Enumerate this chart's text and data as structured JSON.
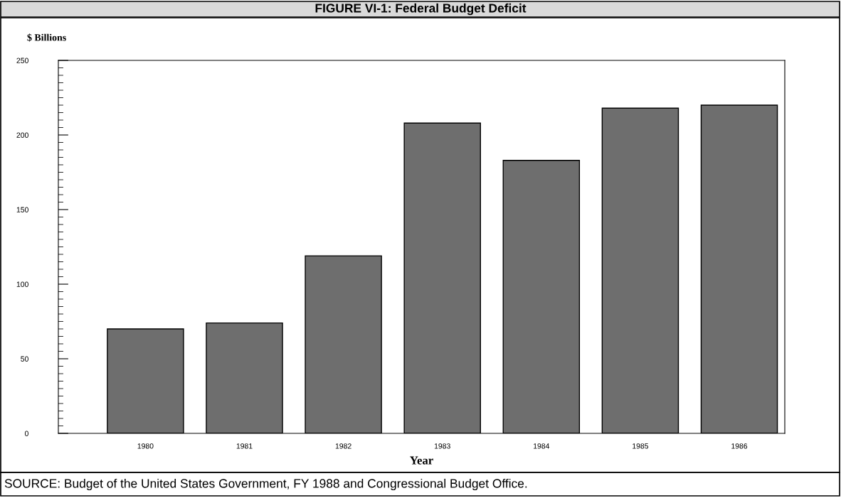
{
  "chart_data": {
    "type": "bar",
    "title": "FIGURE VI-1: Federal Budget Deficit",
    "categories": [
      "1980",
      "1981",
      "1982",
      "1983",
      "1984",
      "1985",
      "1986"
    ],
    "values": [
      70,
      74,
      119,
      208,
      183,
      218,
      220
    ],
    "color": "#6e6e6e",
    "ylabel": "$ Billions",
    "xlabel": "Year",
    "ylim": [
      0,
      250
    ],
    "yticks": [
      0,
      50,
      100,
      150,
      200,
      250
    ],
    "grid": false,
    "legend": false,
    "annotations": [
      "SOURCE: Budget of the United States Government, FY 1988 and Congressional Budget Office."
    ]
  }
}
